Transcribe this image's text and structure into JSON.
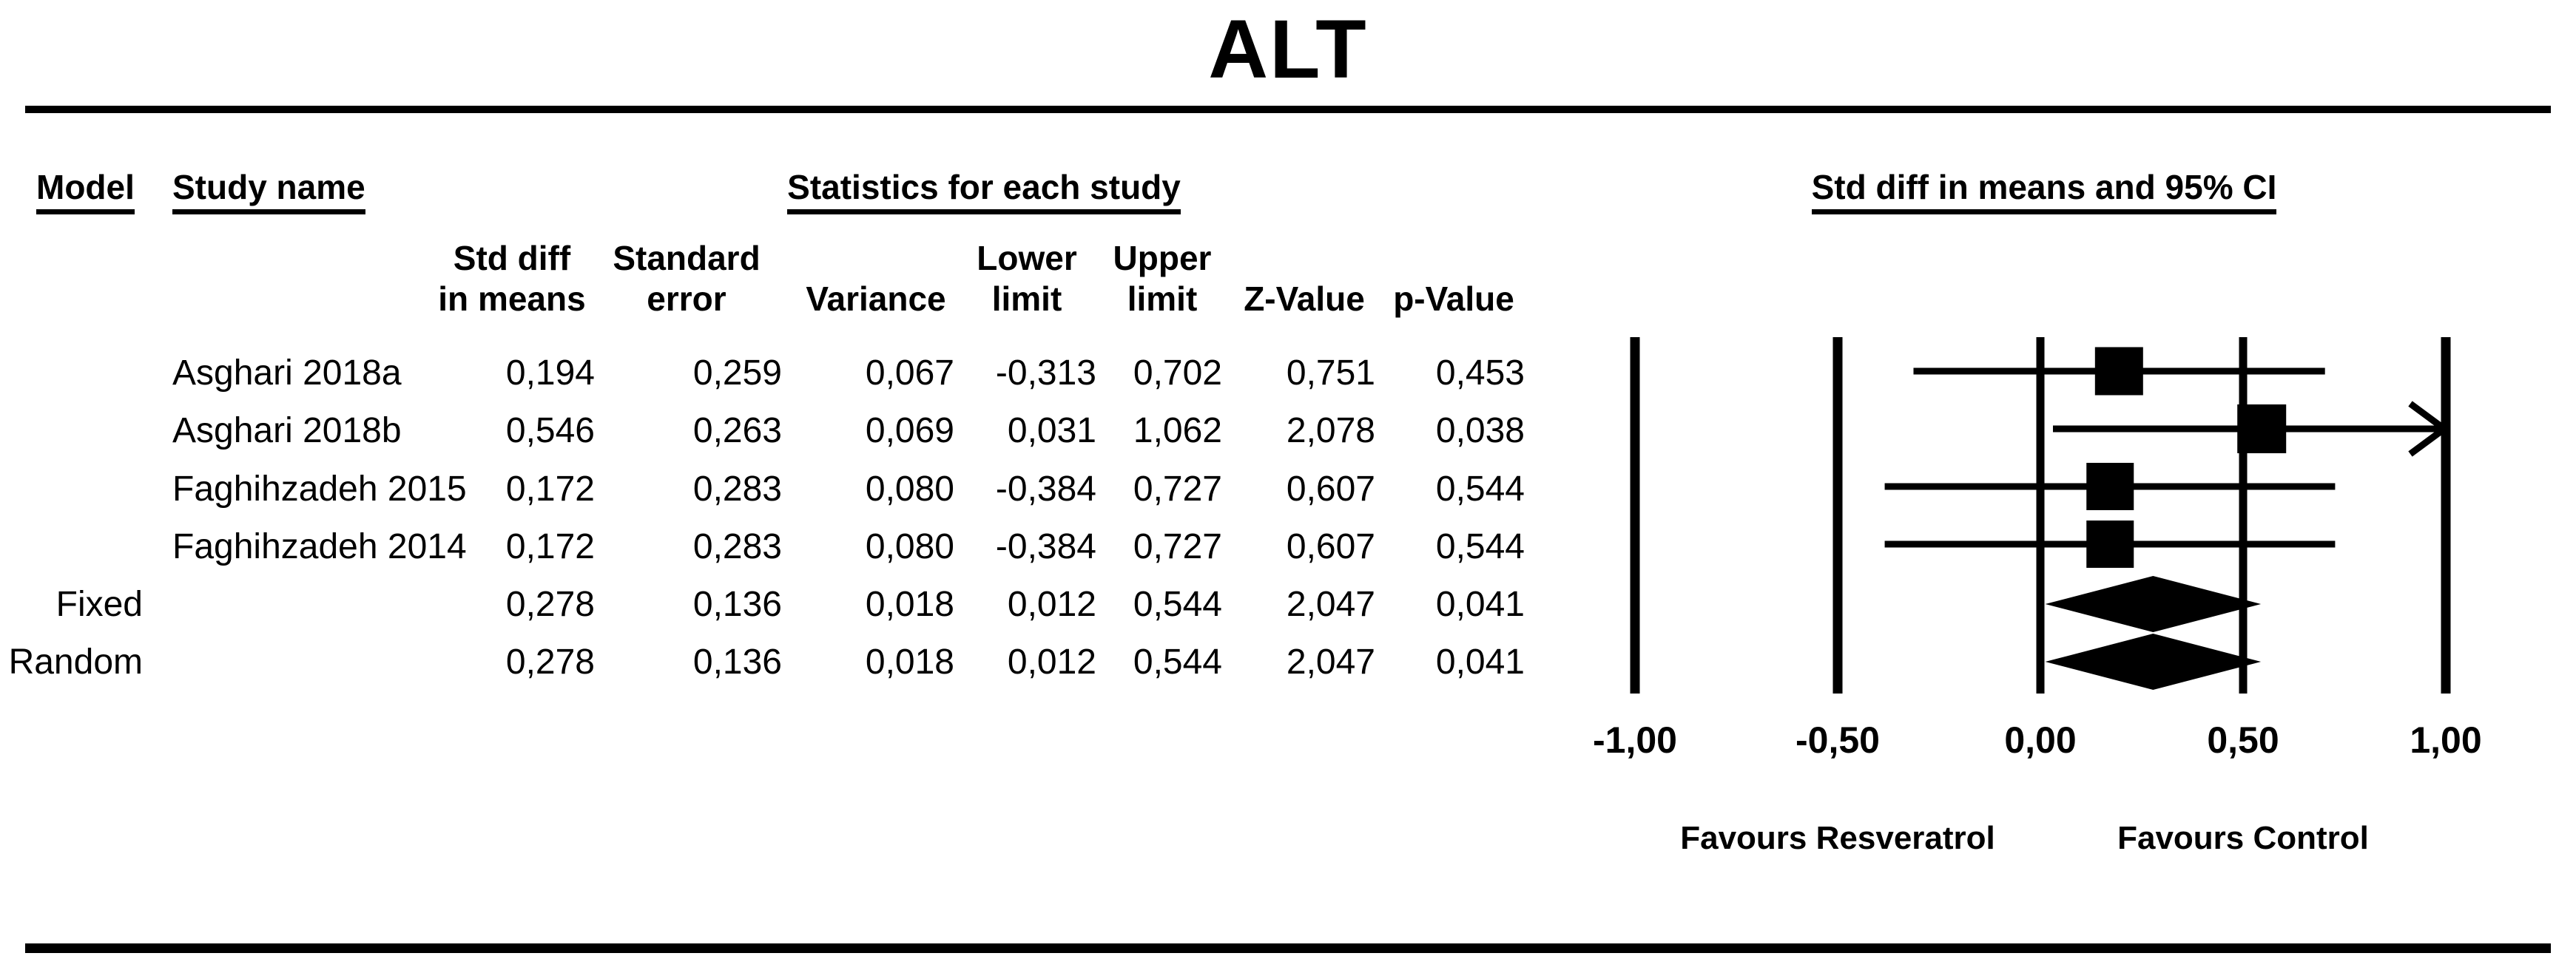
{
  "title": "ALT",
  "colors": {
    "ink": "#000000",
    "background": "#ffffff"
  },
  "table": {
    "headers": {
      "model": "Model",
      "study_name": "Study name",
      "stats_group": "Statistics for each study",
      "plot_group": "Std diff in means and 95% CI",
      "columns": [
        {
          "line1": "Std diff",
          "line2": "in means"
        },
        {
          "line1": "Standard",
          "line2": "error"
        },
        {
          "line1": "",
          "line2": "Variance"
        },
        {
          "line1": "Lower",
          "line2": "limit"
        },
        {
          "line1": "Upper",
          "line2": "limit"
        },
        {
          "line1": "",
          "line2": "Z-Value"
        },
        {
          "line1": "",
          "line2": "p-Value"
        }
      ]
    },
    "rows": [
      {
        "model": "",
        "study": "Asghari 2018a",
        "values": [
          "0,194",
          "0,259",
          "0,067",
          "-0,313",
          "0,702",
          "0,751",
          "0,453"
        ]
      },
      {
        "model": "",
        "study": "Asghari 2018b",
        "values": [
          "0,546",
          "0,263",
          "0,069",
          "0,031",
          "1,062",
          "2,078",
          "0,038"
        ]
      },
      {
        "model": "",
        "study": "Faghihzadeh 2015",
        "values": [
          "0,172",
          "0,283",
          "0,080",
          "-0,384",
          "0,727",
          "0,607",
          "0,544"
        ]
      },
      {
        "model": "",
        "study": "Faghihzadeh 2014",
        "values": [
          "0,172",
          "0,283",
          "0,080",
          "-0,384",
          "0,727",
          "0,607",
          "0,544"
        ]
      },
      {
        "model": "Fixed",
        "study": "",
        "values": [
          "0,278",
          "0,136",
          "0,018",
          "0,012",
          "0,544",
          "2,047",
          "0,041"
        ]
      },
      {
        "model": "Random",
        "study": "",
        "values": [
          "0,278",
          "0,136",
          "0,018",
          "0,012",
          "0,544",
          "2,047",
          "0,041"
        ]
      }
    ]
  },
  "chart_data": {
    "type": "forest",
    "title": "ALT",
    "effect_measure": "Std diff in means and 95% CI",
    "xlim": [
      -1,
      1
    ],
    "ticks": [
      {
        "value": -1,
        "label": "-1,00"
      },
      {
        "value": -0.5,
        "label": "-0,50"
      },
      {
        "value": 0,
        "label": "0,00"
      },
      {
        "value": 0.5,
        "label": "0,50"
      },
      {
        "value": 1,
        "label": "1,00"
      }
    ],
    "thick_gridlines": [
      -1,
      -0.5,
      1
    ],
    "rows": [
      {
        "name": "Asghari 2018a",
        "marker": "square",
        "point": 0.194,
        "lower": -0.313,
        "upper": 0.702,
        "size": 65
      },
      {
        "name": "Asghari 2018b",
        "marker": "square",
        "point": 0.546,
        "lower": 0.031,
        "upper": 1.062,
        "size": 66
      },
      {
        "name": "Faghihzadeh 2015",
        "marker": "square",
        "point": 0.172,
        "lower": -0.384,
        "upper": 0.727,
        "size": 64
      },
      {
        "name": "Faghihzadeh 2014",
        "marker": "square",
        "point": 0.172,
        "lower": -0.384,
        "upper": 0.727,
        "size": 64
      },
      {
        "name": "Fixed",
        "marker": "diamond",
        "point": 0.278,
        "lower": 0.012,
        "upper": 0.544
      },
      {
        "name": "Random",
        "marker": "diamond",
        "point": 0.278,
        "lower": 0.012,
        "upper": 0.544
      }
    ],
    "footers": {
      "left": "Favours Resveratrol",
      "right": "Favours Control"
    }
  }
}
